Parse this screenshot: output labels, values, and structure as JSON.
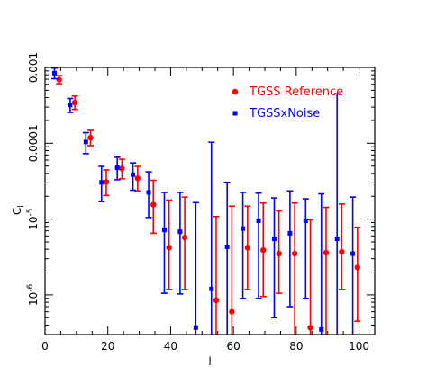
{
  "chart_data": {
    "type": "scatter",
    "xlabel": "l",
    "ylabel": "C",
    "ylabel_sub": "l",
    "xlim": [
      0,
      105
    ],
    "ylim": [
      3e-07,
      0.001
    ],
    "yscale": "log",
    "xticks": [
      0,
      20,
      40,
      60,
      80,
      100
    ],
    "xtick_labels": [
      "0",
      "20",
      "40",
      "60",
      "80",
      "100"
    ],
    "yticks": [
      1e-06,
      1e-05,
      0.0001,
      0.001
    ],
    "ytick_labels": [
      {
        "base": "10",
        "exp": "-6"
      },
      {
        "base": "10",
        "exp": "-5"
      },
      {
        "base": "",
        "exp": "",
        "text": "0.0001"
      },
      {
        "base": "",
        "exp": "",
        "text": "0.001"
      }
    ],
    "grid": false,
    "legend_position": "top-right",
    "series": [
      {
        "name": "TGSS Reference",
        "color": "#ff0000",
        "marker": "circle",
        "points": [
          {
            "x": 4.5,
            "y": 0.00069,
            "lo": 0.00061,
            "hi": 0.00078
          },
          {
            "x": 9.5,
            "y": 0.000345,
            "lo": 0.00028,
            "hi": 0.00042
          },
          {
            "x": 14.5,
            "y": 0.000118,
            "lo": 9.3e-05,
            "hi": 0.000148
          },
          {
            "x": 19.5,
            "y": 3.08e-05,
            "lo": 2.05e-05,
            "hi": 4.45e-05
          },
          {
            "x": 24.5,
            "y": 4.65e-05,
            "lo": 3.4e-05,
            "hi": 6.15e-05
          },
          {
            "x": 29.5,
            "y": 3.45e-05,
            "lo": 2.35e-05,
            "hi": 4.95e-05
          },
          {
            "x": 34.5,
            "y": 1.55e-05,
            "lo": 6.5e-06,
            "hi": 3.25e-05
          },
          {
            "x": 39.5,
            "y": 4.2e-06,
            "lo": 1.18e-06,
            "hi": 1.78e-05
          },
          {
            "x": 44.5,
            "y": 5.7e-06,
            "lo": 1.18e-06,
            "hi": 1.95e-05
          },
          {
            "x": 54.5,
            "y": 8.5e-07,
            "lo": 3e-07,
            "hi": 1.08e-05
          },
          {
            "x": 59.5,
            "y": 6e-07,
            "lo": 3e-07,
            "hi": 1.48e-05
          },
          {
            "x": 64.5,
            "y": 4.2e-06,
            "lo": 1.18e-06,
            "hi": 1.48e-05
          },
          {
            "x": 69.5,
            "y": 3.9e-06,
            "lo": 9.5e-07,
            "hi": 1.63e-05
          },
          {
            "x": 74.5,
            "y": 3.5e-06,
            "lo": 1.05e-06,
            "hi": 1.28e-05
          },
          {
            "x": 79.5,
            "y": 3.5e-06,
            "lo": 3e-07,
            "hi": 1.63e-05
          },
          {
            "x": 84.5,
            "y": 3.7e-07,
            "lo": 3e-07,
            "hi": 9.8e-06
          },
          {
            "x": 89.5,
            "y": 3.6e-06,
            "lo": 3e-07,
            "hi": 1.43e-05
          },
          {
            "x": 94.5,
            "y": 3.7e-06,
            "lo": 1.18e-06,
            "hi": 1.58e-05
          },
          {
            "x": 99.5,
            "y": 2.3e-06,
            "lo": 4.5e-07,
            "hi": 7.8e-06
          }
        ]
      },
      {
        "name": "TGSSxNoise",
        "color": "#0000ff",
        "marker": "square",
        "points": [
          {
            "x": 3,
            "y": 0.00084,
            "lo": 0.00071,
            "hi": 0.00098
          },
          {
            "x": 8,
            "y": 0.00032,
            "lo": 0.000255,
            "hi": 0.00039
          },
          {
            "x": 13,
            "y": 0.000104,
            "lo": 7.3e-05,
            "hi": 0.000138
          },
          {
            "x": 18,
            "y": 3.05e-05,
            "lo": 1.7e-05,
            "hi": 4.95e-05
          },
          {
            "x": 23,
            "y": 4.75e-05,
            "lo": 3.3e-05,
            "hi": 6.55e-05
          },
          {
            "x": 28,
            "y": 3.85e-05,
            "lo": 2.4e-05,
            "hi": 5.5e-05
          },
          {
            "x": 33,
            "y": 2.25e-05,
            "lo": 1.05e-05,
            "hi": 4.2e-05
          },
          {
            "x": 38,
            "y": 7.2e-06,
            "lo": 1.05e-06,
            "hi": 2.25e-05
          },
          {
            "x": 43,
            "y": 6.8e-06,
            "lo": 1.03e-06,
            "hi": 2.25e-05
          },
          {
            "x": 48,
            "y": 3.7e-07,
            "lo": 3e-07,
            "hi": 1.65e-05
          },
          {
            "x": 53,
            "y": 1.2e-06,
            "lo": 3e-07,
            "hi": 0.000103
          },
          {
            "x": 58,
            "y": 4.3e-06,
            "lo": 3e-07,
            "hi": 3.05e-05
          },
          {
            "x": 63,
            "y": 7.5e-06,
            "lo": 9e-07,
            "hi": 2.25e-05
          },
          {
            "x": 68,
            "y": 9.5e-06,
            "lo": 9e-07,
            "hi": 2.2e-05
          },
          {
            "x": 73,
            "y": 5.5e-06,
            "lo": 5e-07,
            "hi": 1.9e-05
          },
          {
            "x": 78,
            "y": 6.5e-06,
            "lo": 7e-07,
            "hi": 2.35e-05
          },
          {
            "x": 83,
            "y": 9.5e-06,
            "lo": 9e-07,
            "hi": 1.85e-05
          },
          {
            "x": 88,
            "y": 3.5e-07,
            "lo": 3e-07,
            "hi": 2.15e-05
          },
          {
            "x": 93,
            "y": 5.5e-06,
            "lo": 3e-07,
            "hi": 0.00045
          },
          {
            "x": 98,
            "y": 3.5e-06,
            "lo": 3e-07,
            "hi": 1.95e-05
          }
        ]
      }
    ]
  }
}
